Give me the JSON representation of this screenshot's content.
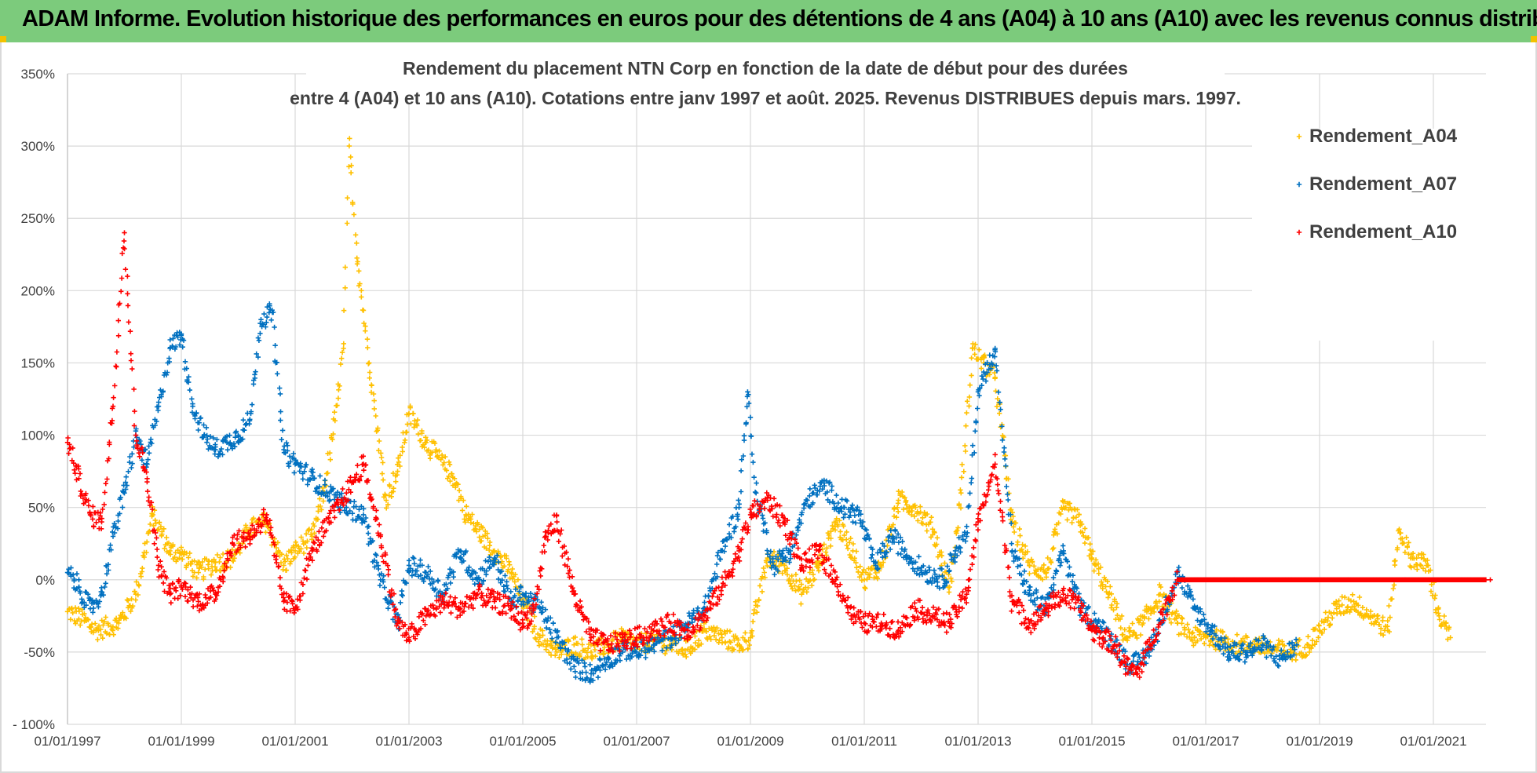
{
  "banner": {
    "title": "ADAM Informe. Evolution historique des performances en euros pour des détentions de 4 ans (A04) à 10 ans (A10) avec les revenus connus distribués"
  },
  "colors": {
    "banner_bg": "#7ccb7c",
    "A04": "#ffc000",
    "A07": "#0070c0",
    "A10": "#ff0000",
    "grid": "#d9d9d9"
  },
  "chart_data": {
    "type": "scatter",
    "title_line1": "Rendement du placement NTN Corp en fonction de la date de début pour des durées",
    "title_line2": "entre 4 (A04) et 10 ans (A10). Cotations entre janv 1997 et août. 2025. Revenus DISTRIBUES depuis mars. 1997.",
    "xlabel": "",
    "ylabel": "",
    "ylim": [
      -100,
      350
    ],
    "xlim": [
      1997.0,
      2022.0
    ],
    "y_ticks": [
      "- 100%",
      "-50%",
      "0%",
      "50%",
      "100%",
      "150%",
      "200%",
      "250%",
      "300%",
      "350%"
    ],
    "x_ticks": [
      "01/01/1997",
      "01/01/1999",
      "01/01/2001",
      "01/01/2003",
      "01/01/2005",
      "01/01/2007",
      "01/01/2009",
      "01/01/2011",
      "01/01/2013",
      "01/01/2015",
      "01/01/2017",
      "01/01/2019",
      "01/01/2021"
    ],
    "grid": true,
    "legend_position": "right",
    "marker": "+",
    "series": [
      {
        "name": "Rendement_A04",
        "x": [
          1997.0,
          1997.3,
          1997.5,
          1997.9,
          1998.2,
          1998.5,
          1998.8,
          1999.0,
          1999.3,
          1999.6,
          1999.9,
          2000.2,
          2000.5,
          2000.8,
          2001.0,
          2001.3,
          2001.5,
          2001.7,
          2001.85,
          2001.95,
          2002.1,
          2002.3,
          2002.6,
          2002.8,
          2003.0,
          2003.3,
          2003.5,
          2003.8,
          2004.0,
          2004.3,
          2004.5,
          2004.8,
          2005.0,
          2005.3,
          2005.6,
          2005.9,
          2006.2,
          2006.5,
          2006.8,
          2007.0,
          2007.3,
          2007.6,
          2007.9,
          2008.2,
          2008.5,
          2008.8,
          2009.0,
          2009.3,
          2009.6,
          2009.9,
          2010.2,
          2010.5,
          2010.8,
          2011.0,
          2011.3,
          2011.6,
          2011.9,
          2012.2,
          2012.5,
          2012.7,
          2012.9,
          2013.1,
          2013.3,
          2013.6,
          2013.9,
          2014.2,
          2014.5,
          2014.8,
          2015.0,
          2015.3,
          2015.6,
          2015.9,
          2016.2,
          2016.5,
          2016.8,
          2017.0,
          2017.3,
          2017.6,
          2017.9,
          2018.2,
          2018.5,
          2018.8,
          2019.0,
          2019.3,
          2019.6,
          2019.9,
          2020.2,
          2020.4,
          2020.6,
          2020.9,
          2021.1,
          2021.3
        ],
        "y": [
          -22,
          -28,
          -35,
          -30,
          -10,
          45,
          20,
          18,
          5,
          12,
          15,
          35,
          40,
          10,
          20,
          30,
          60,
          110,
          160,
          300,
          220,
          150,
          55,
          75,
          115,
          95,
          85,
          70,
          45,
          30,
          20,
          5,
          -15,
          -40,
          -50,
          -45,
          -50,
          -45,
          -40,
          -45,
          -42,
          -45,
          -48,
          -35,
          -40,
          -45,
          -40,
          15,
          10,
          -10,
          10,
          40,
          20,
          0,
          10,
          55,
          50,
          35,
          -5,
          60,
          160,
          150,
          140,
          40,
          10,
          5,
          50,
          40,
          15,
          -10,
          -40,
          -30,
          -10,
          -30,
          -40,
          -40,
          -42,
          -45,
          -45,
          -48,
          -50,
          -45,
          -35,
          -20,
          -15,
          -25,
          -35,
          35,
          15,
          10,
          -25,
          -40
        ]
      },
      {
        "name": "Rendement_A07",
        "x": [
          1997.0,
          1997.2,
          1997.4,
          1997.6,
          1997.8,
          1998.0,
          1998.2,
          1998.4,
          1998.6,
          1998.8,
          1999.0,
          1999.2,
          1999.4,
          1999.6,
          1999.8,
          2000.0,
          2000.2,
          2000.4,
          2000.6,
          2000.8,
          2001.0,
          2001.3,
          2001.6,
          2001.9,
          2002.2,
          2002.5,
          2002.8,
          2003.0,
          2003.3,
          2003.6,
          2003.9,
          2004.2,
          2004.5,
          2004.8,
          2005.0,
          2005.3,
          2005.6,
          2005.9,
          2006.2,
          2006.5,
          2006.8,
          2007.0,
          2007.3,
          2007.6,
          2007.9,
          2008.2,
          2008.5,
          2008.8,
          2008.95,
          2009.1,
          2009.4,
          2009.7,
          2010.0,
          2010.3,
          2010.6,
          2010.9,
          2011.2,
          2011.5,
          2011.8,
          2012.1,
          2012.4,
          2012.6,
          2012.8,
          2013.0,
          2013.3,
          2013.6,
          2013.9,
          2014.2,
          2014.5,
          2014.8,
          2015.1,
          2015.4,
          2015.7,
          2016.0,
          2016.2,
          2016.5,
          2016.8,
          2017.1,
          2017.4,
          2017.7,
          2018.0,
          2018.3,
          2018.6
        ],
        "y": [
          5,
          -5,
          -20,
          -10,
          30,
          60,
          100,
          80,
          120,
          160,
          170,
          120,
          100,
          90,
          95,
          100,
          110,
          180,
          185,
          90,
          80,
          70,
          60,
          50,
          45,
          0,
          -30,
          10,
          5,
          -10,
          20,
          0,
          15,
          -15,
          -10,
          -20,
          -40,
          -60,
          -65,
          -55,
          -48,
          -50,
          -45,
          -40,
          -30,
          -20,
          20,
          50,
          130,
          60,
          10,
          20,
          55,
          65,
          50,
          45,
          10,
          30,
          15,
          5,
          0,
          20,
          30,
          130,
          160,
          20,
          -10,
          -20,
          20,
          -20,
          -30,
          -45,
          -60,
          -50,
          -30,
          5,
          -20,
          -35,
          -50,
          -50,
          -45,
          -55,
          -45
        ]
      },
      {
        "name": "Rendement_A10",
        "x": [
          1997.0,
          1997.2,
          1997.4,
          1997.6,
          1997.8,
          1998.0,
          1998.2,
          1998.4,
          1998.6,
          1998.8,
          1999.0,
          1999.3,
          1999.6,
          1999.9,
          2000.2,
          2000.5,
          2000.8,
          2001.0,
          2001.3,
          2001.6,
          2001.9,
          2002.2,
          2002.5,
          2002.8,
          2003.0,
          2003.3,
          2003.6,
          2003.9,
          2004.2,
          2004.5,
          2004.8,
          2005.0,
          2005.2,
          2005.4,
          2005.6,
          2005.9,
          2006.2,
          2006.5,
          2006.8,
          2007.0,
          2007.3,
          2007.6,
          2007.9,
          2008.2,
          2008.5,
          2008.8,
          2009.0,
          2009.3,
          2009.6,
          2009.9,
          2010.2,
          2010.5,
          2010.8,
          2011.0,
          2011.3,
          2011.6,
          2011.9,
          2012.2,
          2012.5,
          2012.8,
          2013.0,
          2013.3,
          2013.6,
          2013.9,
          2014.2,
          2014.5,
          2014.8,
          2015.0,
          2015.2,
          2015.4,
          2015.6,
          2015.8,
          2016.5,
          2017.5,
          2018.5,
          2019.5,
          2020.5,
          2021.5,
          2022.0
        ],
        "y": [
          95,
          70,
          45,
          40,
          120,
          240,
          100,
          70,
          10,
          -10,
          -5,
          -15,
          -10,
          25,
          30,
          45,
          -15,
          -20,
          20,
          40,
          60,
          80,
          30,
          -30,
          -40,
          -25,
          -15,
          -20,
          -10,
          -15,
          -20,
          -30,
          -20,
          30,
          40,
          -10,
          -40,
          -45,
          -42,
          -40,
          -35,
          -30,
          -35,
          -25,
          -5,
          20,
          45,
          55,
          40,
          10,
          20,
          0,
          -25,
          -30,
          -30,
          -35,
          -20,
          -25,
          -30,
          -10,
          40,
          80,
          -15,
          -30,
          -20,
          -10,
          -20,
          -35,
          -40,
          -45,
          -60,
          -65,
          0,
          0,
          0,
          0,
          0,
          0,
          0
        ]
      }
    ]
  }
}
